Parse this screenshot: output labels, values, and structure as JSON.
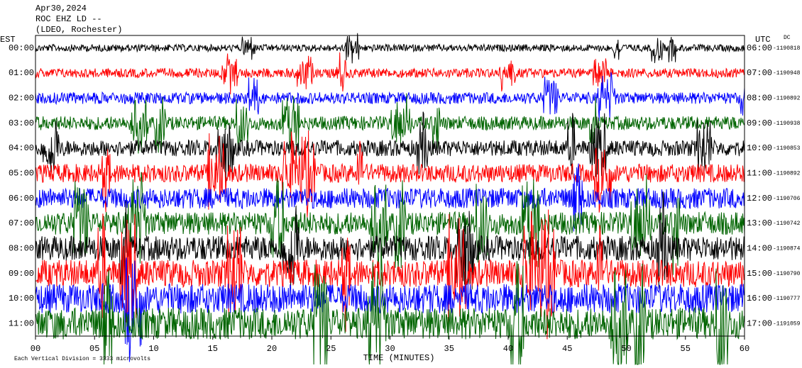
{
  "chart_data": {
    "type": "helicorder",
    "title_lines": [
      "Apr30,2024",
      "ROC EHZ LD --",
      "(LDEO, Rochester)"
    ],
    "left_axis_label": "EST",
    "right_axis_label": "UTC",
    "dc_label": "DC",
    "x_label": "TIME (MINUTES)",
    "note": "Each Vertical Division = 3333 microvolts",
    "xlim": [
      0,
      60
    ],
    "xticks": [
      {
        "value": 0,
        "label": "00"
      },
      {
        "value": 5,
        "label": "05"
      },
      10,
      15,
      20,
      25,
      30,
      35,
      40,
      45,
      50,
      55,
      60
    ],
    "rows": [
      {
        "est": "00:00",
        "utc": "06:00",
        "dc": -1190818,
        "color": "#000000"
      },
      {
        "est": "01:00",
        "utc": "07:00",
        "dc": -1190948,
        "color": "#ff0000"
      },
      {
        "est": "02:00",
        "utc": "08:00",
        "dc": -1190892,
        "color": "#0000ff"
      },
      {
        "est": "03:00",
        "utc": "09:00",
        "dc": -1190938,
        "color": "#006400"
      },
      {
        "est": "04:00",
        "utc": "10:00",
        "dc": -1190853,
        "color": "#000000"
      },
      {
        "est": "05:00",
        "utc": "11:00",
        "dc": -1190892,
        "color": "#ff0000"
      },
      {
        "est": "06:00",
        "utc": "12:00",
        "dc": -1190706,
        "color": "#0000ff"
      },
      {
        "est": "07:00",
        "utc": "13:00",
        "dc": -1190742,
        "color": "#006400"
      },
      {
        "est": "08:00",
        "utc": "14:00",
        "dc": -1190874,
        "color": "#000000"
      },
      {
        "est": "09:00",
        "utc": "15:00",
        "dc": -1190790,
        "color": "#ff0000"
      },
      {
        "est": "10:00",
        "utc": "16:00",
        "dc": -1190777,
        "color": "#0000ff"
      },
      {
        "est": "11:00",
        "utc": "17:00",
        "dc": -1191059,
        "color": "#006400"
      }
    ]
  }
}
